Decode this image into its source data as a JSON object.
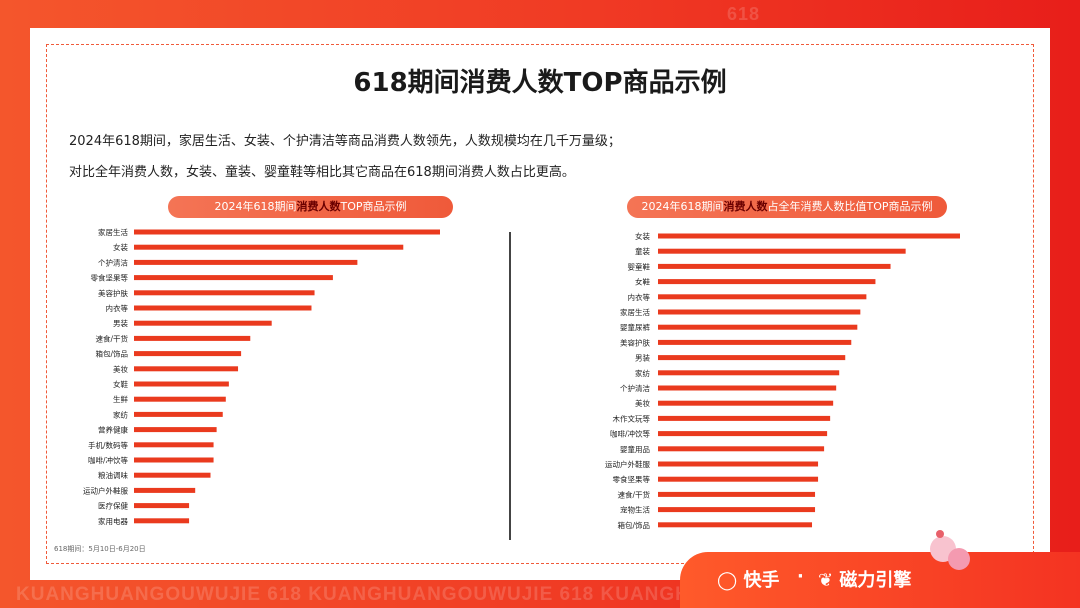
{
  "background": {
    "watermark_top": "618",
    "watermark_bottom": "KUANGHUANGOUWUJIE    618    KUANGHUANGOUWUJIE    618    KUANGHUANGOUWUJIE    618"
  },
  "page": {
    "title": "618期间消费人数TOP商品示例",
    "description_1": "2024年618期间，家居生活、女装、个护清洁等商品消费人数领先，人数规模均在几千万量级；",
    "description_2": "对比全年消费人数，女装、童装、婴童鞋等相比其它商品在618期间消费人数占比更高。",
    "footnote": "618期间：5月10日-6月20日"
  },
  "left_pill": {
    "pre": "2024年618期间",
    "highlight": "消费人数",
    "post": "TOP商品示例"
  },
  "right_pill": {
    "pre": "2024年618期间",
    "highlight": "消费人数",
    "post": "占全年消费人数比值TOP商品示例"
  },
  "footer": {
    "brand_1": "快手",
    "separator": "·",
    "brand_2": "磁力引擎"
  },
  "colors": {
    "bar": "#ea3a1e",
    "accent": "#f05a3a"
  },
  "chart_data": [
    {
      "type": "bar",
      "orientation": "horizontal",
      "title": "2024年618期间消费人数TOP商品示例",
      "categories": [
        "家居生活",
        "女装",
        "个护清洁",
        "零食坚果等",
        "美容护肤",
        "内衣等",
        "男装",
        "速食/干货",
        "箱包/饰品",
        "美妆",
        "女鞋",
        "生鲜",
        "家纺",
        "营养健康",
        "手机/数码等",
        "咖啡/冲饮等",
        "粮油调味",
        "运动户外鞋服",
        "医疗保健",
        "家用电器"
      ],
      "values": [
        100,
        88,
        73,
        65,
        59,
        58,
        45,
        38,
        35,
        34,
        31,
        30,
        29,
        27,
        26,
        26,
        25,
        20,
        18,
        18
      ],
      "xlabel": "",
      "ylabel": ""
    },
    {
      "type": "bar",
      "orientation": "horizontal",
      "title": "2024年618期间消费人数占全年消费人数比值TOP商品示例",
      "categories": [
        "女装",
        "童装",
        "婴童鞋",
        "女鞋",
        "内衣等",
        "家居生活",
        "婴童尿裤",
        "美容护肤",
        "男装",
        "家纺",
        "个护清洁",
        "美妆",
        "木作文玩等",
        "咖啡/冲饮等",
        "婴童用品",
        "运动户外鞋服",
        "零食坚果等",
        "速食/干货",
        "宠物生活",
        "箱包/饰品"
      ],
      "values": [
        100,
        82,
        77,
        72,
        69,
        67,
        66,
        64,
        62,
        60,
        59,
        58,
        57,
        56,
        55,
        53,
        53,
        52,
        52,
        51
      ],
      "xlabel": "",
      "ylabel": ""
    }
  ]
}
